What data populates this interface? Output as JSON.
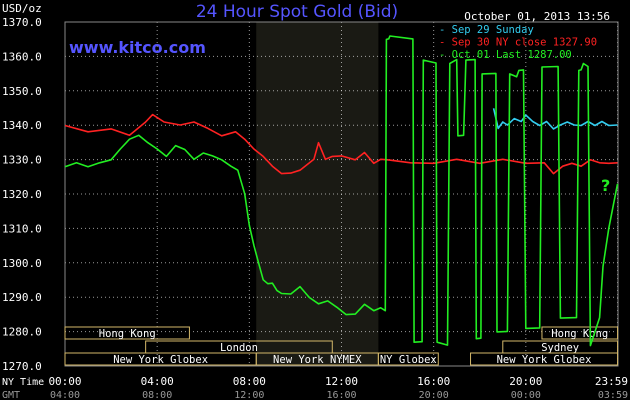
{
  "header": {
    "unit": "USD/oz",
    "title": "24 Hour Spot Gold (Bid)",
    "datetime": "October 01, 2013 13:56",
    "brand": "www.kitco.com"
  },
  "colors": {
    "background": "#000000",
    "plot_background": "#000000",
    "shaded_session": "#1a1a14",
    "grid": "#ffffff",
    "axis_text": "#ffffff",
    "title": "#5555ff",
    "brand": "#5555ff",
    "sep29": "#33ccee",
    "sep30": "#ff2222",
    "oct01": "#22ee22",
    "question": "#22ee22",
    "market_border": "#d4b86a",
    "market_text": "#ffffff"
  },
  "chart_data": {
    "type": "line",
    "ylim": [
      1270,
      1370
    ],
    "xlim": [
      0,
      24
    ],
    "y_ticks": [
      "1270.0",
      "1280.0",
      "1290.0",
      "1300.0",
      "1310.0",
      "1320.0",
      "1330.0",
      "1340.0",
      "1350.0",
      "1360.0",
      "1370.0"
    ],
    "x_ticks": [
      {
        "ny": "00:00",
        "gmt": "04:00"
      },
      {
        "ny": "04:00",
        "gmt": "08:00"
      },
      {
        "ny": "08:00",
        "gmt": "12:00"
      },
      {
        "ny": "12:00",
        "gmt": "16:00"
      },
      {
        "ny": "16:00",
        "gmt": "20:00"
      },
      {
        "ny": "20:00",
        "gmt": "00:00"
      },
      {
        "ny": "23:59",
        "gmt": "03:59"
      }
    ],
    "x_axis_labels": {
      "ny": "NY Time",
      "gmt": "GMT"
    },
    "shaded_session": [
      8.3,
      13.6
    ],
    "annotation": "?",
    "legend": [
      {
        "label": "- Sep 29 Sunday",
        "color": "#33ccee"
      },
      {
        "label": "- Sep 30 NY close 1327.90",
        "color": "#ff2222"
      },
      {
        "label": "- Oct 01 Last 1287.00",
        "color": "#22ee22"
      }
    ],
    "series": [
      {
        "name": "Sep 29 Sunday",
        "color": "#33ccee",
        "x": [
          18.6,
          18.8,
          19.0,
          19.2,
          19.5,
          19.8,
          20.0,
          20.3,
          20.6,
          20.9,
          21.2,
          21.5,
          21.8,
          22.1,
          22.4,
          22.7,
          23.0,
          23.3,
          23.6,
          23.98
        ],
        "y": [
          1345,
          1339,
          1341,
          1340,
          1342,
          1341,
          1343,
          1341,
          1340,
          1341,
          1339,
          1340,
          1341,
          1340,
          1340,
          1341,
          1340,
          1341,
          1340,
          1340
        ]
      },
      {
        "name": "Sep 30 NY close 1327.90",
        "color": "#ff2222",
        "x": [
          0,
          1.0,
          2.0,
          2.8,
          3.5,
          3.8,
          4.3,
          5.0,
          5.6,
          6.2,
          6.8,
          7.4,
          7.8,
          8.2,
          8.6,
          9.0,
          9.4,
          9.8,
          10.2,
          10.8,
          11.0,
          11.3,
          11.6,
          12.0,
          12.6,
          13.0,
          13.4,
          13.7,
          14.0,
          15.0,
          16.0,
          17.0,
          18.0,
          19.0,
          20.0,
          20.8,
          21.2,
          21.6,
          22.0,
          22.4,
          22.8,
          23.2,
          23.6,
          23.98
        ],
        "y": [
          1340,
          1338,
          1339,
          1337,
          1341,
          1343,
          1341,
          1340,
          1341,
          1339,
          1337,
          1338,
          1336,
          1333,
          1331,
          1328,
          1326,
          1326,
          1327,
          1330,
          1335,
          1330,
          1331,
          1331,
          1330,
          1332,
          1329,
          1330,
          1330,
          1329,
          1329,
          1330,
          1329,
          1330,
          1329,
          1329,
          1326,
          1328,
          1329,
          1328,
          1330,
          1329,
          1329,
          1329
        ]
      },
      {
        "name": "Oct 01 Last 1287.00",
        "color": "#22ee22",
        "x": [
          0,
          0.5,
          1.0,
          1.5,
          2.0,
          2.4,
          2.8,
          3.2,
          3.6,
          4.0,
          4.4,
          4.8,
          5.2,
          5.6,
          6.0,
          6.4,
          6.8,
          7.2,
          7.5,
          7.8,
          8.0,
          8.2,
          8.4,
          8.6,
          8.8,
          9.0,
          9.2,
          9.4,
          9.8,
          10.2,
          10.6,
          11.0,
          11.4,
          11.8,
          12.2,
          12.6,
          13.0,
          13.4,
          13.7,
          13.9,
          13.95,
          14.05,
          14.1,
          15.1,
          15.15,
          15.5,
          15.55,
          16.1,
          16.15,
          16.6,
          16.7,
          17.0,
          17.05,
          17.3,
          17.4,
          17.8,
          17.85,
          18.05,
          18.1,
          18.7,
          18.75,
          19.2,
          19.3,
          19.6,
          19.7,
          19.9,
          20.0,
          20.6,
          20.7,
          21.4,
          21.5,
          22.2,
          22.3,
          22.4,
          22.5,
          22.7,
          22.8,
          23.2,
          23.35,
          23.6,
          23.98
        ],
        "y": [
          1328,
          1329,
          1328,
          1329,
          1330,
          1333,
          1336,
          1337,
          1335,
          1333,
          1331,
          1334,
          1333,
          1330,
          1332,
          1331,
          1330,
          1328,
          1327,
          1320,
          1311,
          1305,
          1300,
          1295,
          1294,
          1294,
          1292,
          1291,
          1291,
          1293,
          1290,
          1288,
          1289,
          1287,
          1285,
          1285,
          1288,
          1286,
          1287,
          1286,
          1365,
          1365,
          1366,
          1365,
          1277,
          1277,
          1359,
          1358,
          1277,
          1276,
          1358,
          1359,
          1337,
          1337,
          1359,
          1359,
          1278,
          1278,
          1355,
          1355,
          1280,
          1280,
          1355,
          1354,
          1356,
          1356,
          1281,
          1281,
          1357,
          1357,
          1284,
          1284,
          1356,
          1356,
          1358,
          1357,
          1276,
          1284,
          1299,
          1310,
          1323
        ]
      }
    ],
    "markets": [
      {
        "name": "Hong Kong",
        "row": 0,
        "start": 0,
        "end": 5.4
      },
      {
        "name": "Hong Kong",
        "row": 0,
        "start": 20.7,
        "end": 23.98
      },
      {
        "name": "London",
        "row": 1,
        "start": 3.5,
        "end": 11.6
      },
      {
        "name": "Sydney",
        "row": 1,
        "start": 19.0,
        "end": 23.98
      },
      {
        "name": "New York Globex",
        "row": 2,
        "start": 0,
        "end": 8.3
      },
      {
        "name": "New York NYMEX",
        "row": 2,
        "start": 8.3,
        "end": 13.6
      },
      {
        "name": "NY Globex",
        "row": 2,
        "start": 13.6,
        "end": 16.2
      },
      {
        "name": "New York Globex",
        "row": 2,
        "start": 17.6,
        "end": 23.98
      }
    ]
  }
}
